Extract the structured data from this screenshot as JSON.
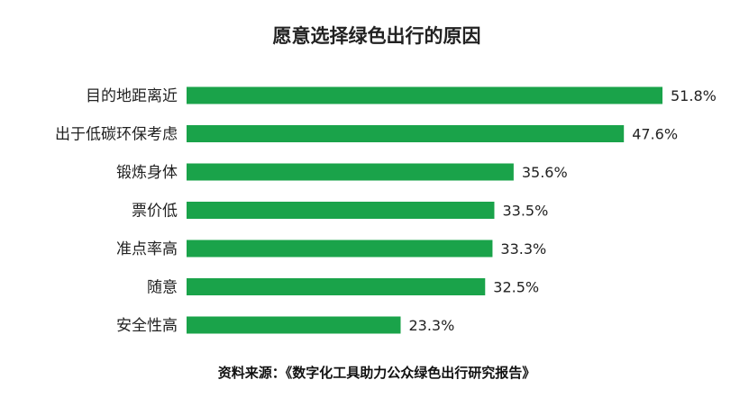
{
  "chart_data": {
    "type": "bar",
    "orientation": "horizontal",
    "title": "愿意选择绿色出行的原因",
    "categories": [
      "目的地距离近",
      "出于低碳环保考虑",
      "锻炼身体",
      "票价低",
      "准点率高",
      "随意",
      "安全性高"
    ],
    "values": [
      51.8,
      47.6,
      35.6,
      33.5,
      33.3,
      32.5,
      23.3
    ],
    "value_labels": [
      "51.8%",
      "47.6%",
      "35.6%",
      "33.5%",
      "33.3%",
      "32.5%",
      "23.3%"
    ],
    "unit": "%",
    "xlim": [
      0,
      51.8
    ],
    "grid": false,
    "legend": "none",
    "bar_color": "#1aa34a"
  },
  "source": "资料来源：《数字化工具助力公众绿色出行研究报告》"
}
